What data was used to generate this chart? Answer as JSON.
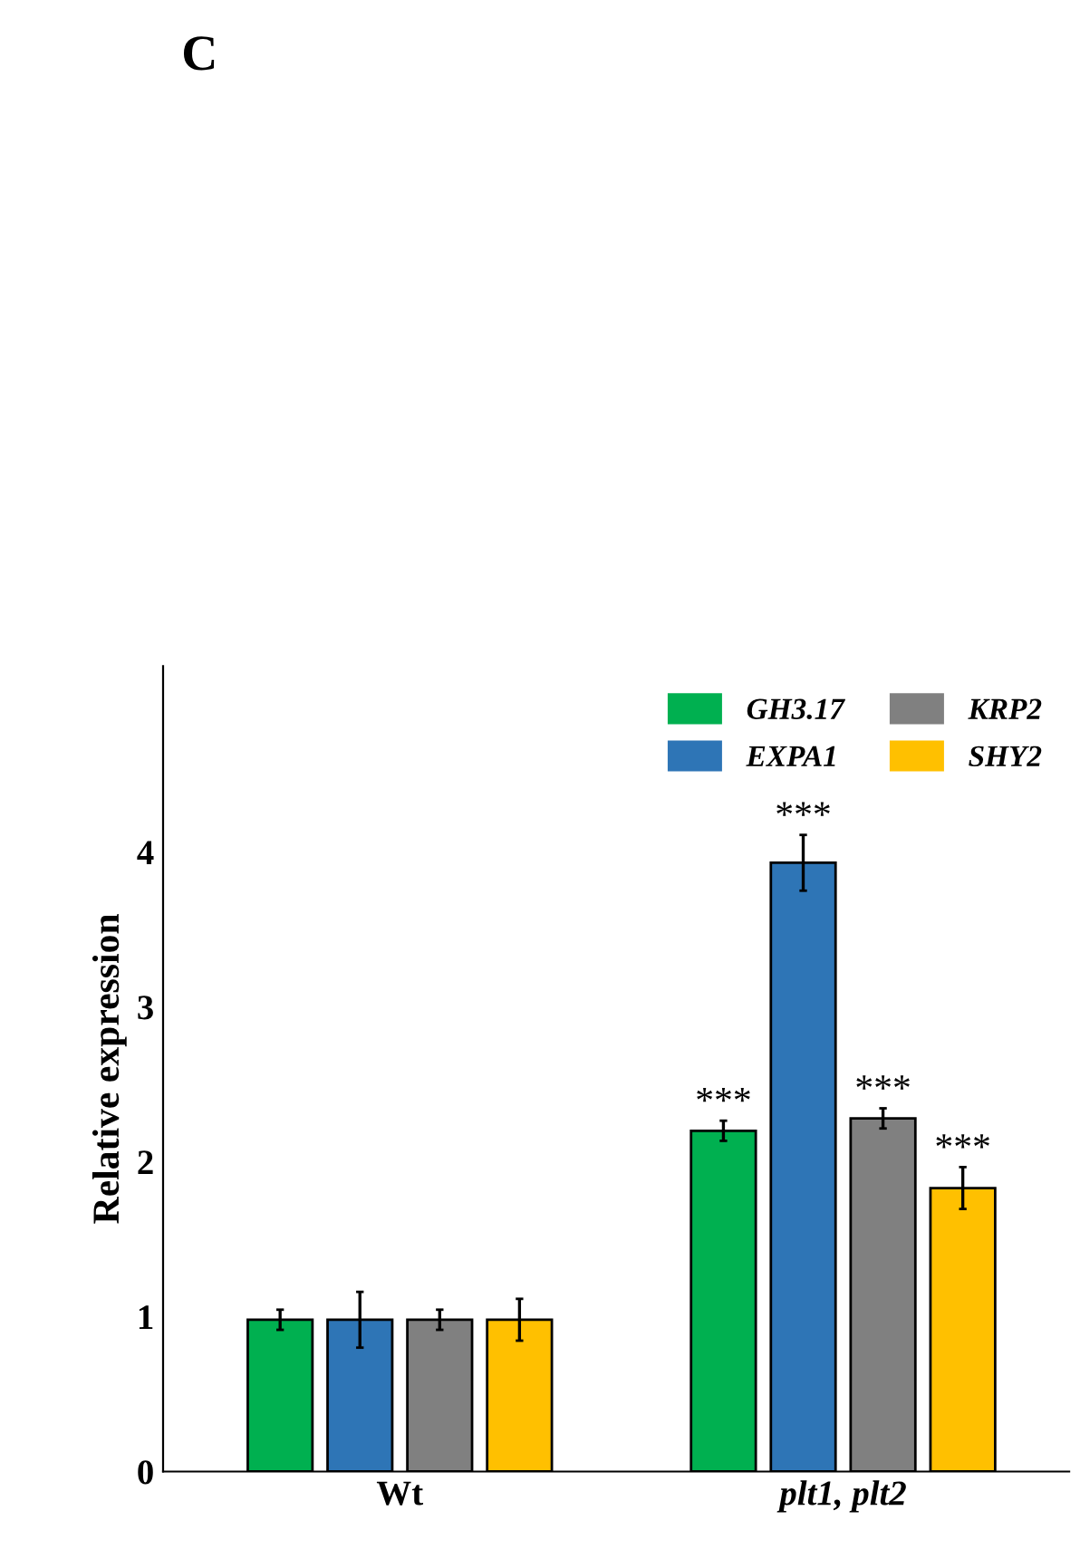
{
  "chart_data": {
    "type": "bar",
    "title": "C",
    "ylabel": "Relative expression",
    "categories": [
      "Wt",
      "plt1, plt2"
    ],
    "series": [
      {
        "name": "GH3.17",
        "color": "#00b050",
        "values": [
          0.98,
          2.2
        ],
        "errors": [
          0.065,
          0.065
        ],
        "value_labels": [
          null,
          "***"
        ]
      },
      {
        "name": "EXPA1",
        "color": "#2e75b6",
        "values": [
          0.98,
          3.93
        ],
        "errors": [
          0.18,
          0.18
        ],
        "value_labels": [
          null,
          "***"
        ]
      },
      {
        "name": "KRP2",
        "color": "#808080",
        "values": [
          0.98,
          2.28
        ],
        "errors": [
          0.065,
          0.065
        ],
        "value_labels": [
          null,
          "***"
        ]
      },
      {
        "name": "SHY2",
        "color": "#ffc000",
        "values": [
          0.98,
          1.83
        ],
        "errors": [
          0.135,
          0.135
        ],
        "value_labels": [
          null,
          "***"
        ]
      }
    ],
    "ylim": [
      0,
      5.2
    ],
    "yticks": [
      0,
      1,
      2,
      3,
      4
    ],
    "grid": false,
    "legend": "top right"
  }
}
